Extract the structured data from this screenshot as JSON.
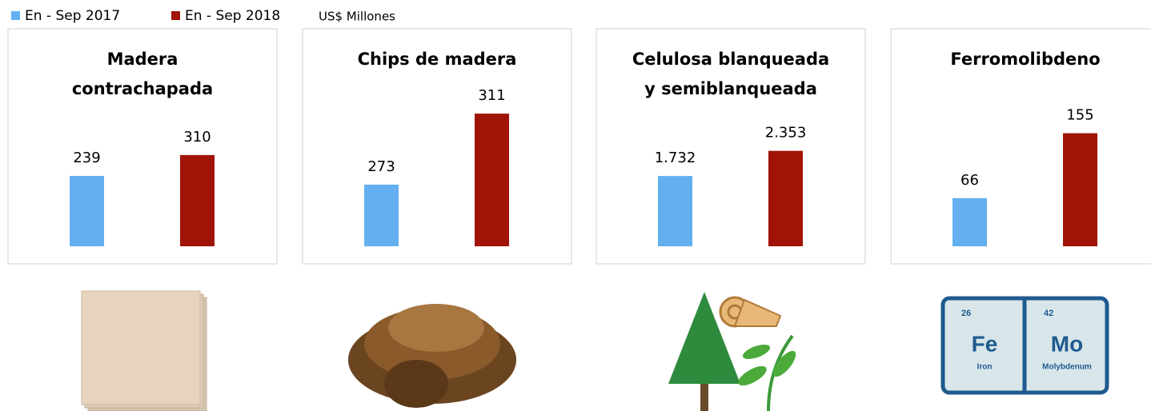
{
  "legend": {
    "items": [
      {
        "name": "En - Sep 2017",
        "color": "#64aff0"
      },
      {
        "name": "En - Sep 2018",
        "color": "#a01408"
      }
    ],
    "unit": "US$ Millones"
  },
  "chart_data": [
    {
      "type": "bar",
      "title": [
        "Madera",
        "contrachapada"
      ],
      "values": [
        239,
        310
      ],
      "ylim": [
        0,
        565
      ]
    },
    {
      "type": "bar",
      "title": [
        "Chips de madera"
      ],
      "values": [
        273,
        311
      ],
      "ylim": [
        240,
        329
      ]
    },
    {
      "type": "bar",
      "title": [
        "Celulosa blanqueada",
        "y semiblanqueada"
      ],
      "values": [
        1732,
        2353
      ],
      "value_labels": [
        "1.732",
        "2.353"
      ],
      "ylim": [
        0,
        4100
      ]
    },
    {
      "type": "bar",
      "title": [
        "Ferromolibdeno"
      ],
      "values": [
        66,
        155
      ],
      "ylim": [
        0,
        228
      ]
    }
  ],
  "periodic_table": [
    {
      "number": 26,
      "symbol": "Fe",
      "name": "Iron"
    },
    {
      "number": 42,
      "symbol": "Mo",
      "name": "Molybdenum"
    }
  ]
}
